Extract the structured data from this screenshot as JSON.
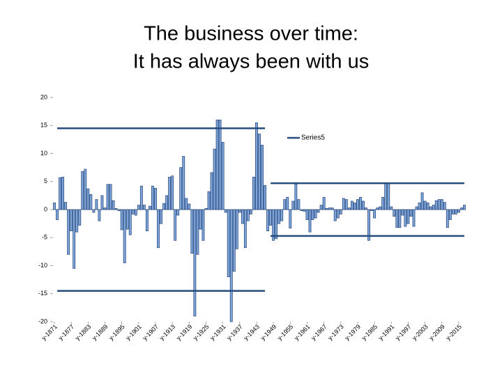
{
  "chart_data": {
    "type": "bar",
    "title": [
      "The business over time:",
      "It has always been with us"
    ],
    "x": [
      1871,
      1872,
      1873,
      1874,
      1875,
      1876,
      1877,
      1878,
      1879,
      1880,
      1881,
      1882,
      1883,
      1884,
      1885,
      1886,
      1887,
      1888,
      1889,
      1890,
      1891,
      1892,
      1893,
      1894,
      1895,
      1896,
      1897,
      1898,
      1899,
      1900,
      1901,
      1902,
      1903,
      1904,
      1905,
      1906,
      1907,
      1908,
      1909,
      1910,
      1911,
      1912,
      1913,
      1914,
      1915,
      1916,
      1917,
      1918,
      1919,
      1920,
      1921,
      1922,
      1923,
      1924,
      1925,
      1926,
      1927,
      1928,
      1929,
      1930,
      1931,
      1932,
      1933,
      1934,
      1935,
      1936,
      1937,
      1938,
      1939,
      1940,
      1941,
      1942,
      1943,
      1944,
      1945,
      1946,
      1947,
      1948,
      1949,
      1950,
      1951,
      1952,
      1953,
      1954,
      1955,
      1956,
      1957,
      1958,
      1959,
      1960,
      1961,
      1962,
      1963,
      1964,
      1965,
      1966,
      1967,
      1968,
      1969,
      1970,
      1971,
      1972,
      1973,
      1974,
      1975,
      1976,
      1977,
      1978,
      1979,
      1980,
      1981,
      1982,
      1983,
      1984,
      1985,
      1986,
      1987,
      1988,
      1989,
      1990,
      1991,
      1992,
      1993,
      1994,
      1995,
      1996,
      1997,
      1998,
      1999,
      2000,
      2001,
      2002,
      2003,
      2004,
      2005,
      2006,
      2007,
      2008,
      2009,
      2010,
      2011,
      2012,
      2013,
      2014,
      2015,
      2016,
      2017
    ],
    "values": [
      1.2,
      -1.8,
      5.7,
      5.8,
      1.3,
      -8,
      -3.8,
      -10.5,
      -4,
      -2.8,
      6.8,
      7.2,
      3.7,
      2.7,
      -0.5,
      1.8,
      -2,
      2.5,
      0.3,
      4.5,
      4.5,
      1.6,
      0.2,
      -0.2,
      -3.6,
      -9.5,
      -3.5,
      -4.5,
      -0.8,
      -1,
      0.8,
      4.2,
      0.8,
      -3.8,
      0.6,
      4.2,
      3.8,
      -6.8,
      -2.5,
      1.1,
      2.5,
      5.8,
      6,
      -5.5,
      -1,
      7.5,
      9.5,
      2,
      1,
      -7.8,
      -19,
      -8,
      -3.5,
      -5.5,
      0.2,
      3.2,
      6.6,
      10.8,
      16,
      16,
      12,
      -0.5,
      -12,
      -20,
      -11,
      -7,
      -0.5,
      -2.5,
      -6.8,
      -2,
      -0.8,
      5.8,
      15.5,
      13.5,
      11.5,
      4.3,
      -3.8,
      -2.8,
      -5.5,
      -5.2,
      -2.5,
      -2,
      1.8,
      2.2,
      -3.3,
      1.5,
      4.5,
      1.8,
      -0.2,
      -0.3,
      -1.8,
      -4,
      -1.8,
      -1.5,
      -0.5,
      0.8,
      2.2,
      0.2,
      0.3,
      0.3,
      -2,
      -1.5,
      -0.8,
      2,
      1.8,
      0.3,
      1.5,
      1.2,
      1.8,
      2.2,
      1.5,
      0.3,
      -5.5,
      -0.2,
      -1.5,
      0.3,
      0.5,
      2.2,
      4.7,
      4.7,
      0.5,
      -1.2,
      -3.2,
      -3.2,
      -1,
      -3,
      -2.5,
      -1.2,
      -3,
      0.5,
      1.2,
      3,
      1.5,
      1.2,
      0.5,
      0.8,
      1.6,
      1.8,
      1.8,
      1.3,
      -3.2,
      -1.8,
      -0.8,
      -0.8,
      -0.5,
      0.3,
      0.8
    ],
    "color": "#7ea6d9",
    "series": [
      {
        "name": "Series5",
        "color": "#264d7e",
        "lines": [
          {
            "start": 1872,
            "end": 1946,
            "value": 14.5
          },
          {
            "start": 1872,
            "end": 1946,
            "value": -14.5
          },
          {
            "start": 1948,
            "end": 2017,
            "value": 4.7
          },
          {
            "start": 1948,
            "end": 2017,
            "value": -4.7
          }
        ]
      }
    ],
    "xlim": [
      1870.5,
      2017.5
    ],
    "xticks": [
      {
        "value": 1871,
        "label": "y-1871"
      },
      {
        "value": 1877,
        "label": "y-1877"
      },
      {
        "value": 1883,
        "label": "y-1883"
      },
      {
        "value": 1889,
        "label": "y-1889"
      },
      {
        "value": 1895,
        "label": "y-1895"
      },
      {
        "value": 1901,
        "label": "y-1901"
      },
      {
        "value": 1907,
        "label": "y-1907"
      },
      {
        "value": 1913,
        "label": "y-1913"
      },
      {
        "value": 1919,
        "label": "y-1919"
      },
      {
        "value": 1925,
        "label": "y-1925"
      },
      {
        "value": 1931,
        "label": "y-1931"
      },
      {
        "value": 1937,
        "label": "y-1937"
      },
      {
        "value": 1943,
        "label": "y-1943"
      },
      {
        "value": 1949,
        "label": "y-1949"
      },
      {
        "value": 1955,
        "label": "y-1955"
      },
      {
        "value": 1961,
        "label": "y-1961"
      },
      {
        "value": 1967,
        "label": "y-1967"
      },
      {
        "value": 1973,
        "label": "y-1973"
      },
      {
        "value": 1979,
        "label": "y-1979"
      },
      {
        "value": 1985,
        "label": "y-1985"
      },
      {
        "value": 1991,
        "label": "y-1991"
      },
      {
        "value": 1997,
        "label": "y-1997"
      },
      {
        "value": 2003,
        "label": "y-2003"
      },
      {
        "value": 2009,
        "label": "y-2009"
      },
      {
        "value": 2015,
        "label": "y-2015"
      }
    ],
    "ylim": [
      -20,
      20
    ],
    "yticks": [
      -20,
      -15,
      -10,
      -5,
      0,
      5,
      10,
      15,
      20
    ],
    "grid": false
  }
}
